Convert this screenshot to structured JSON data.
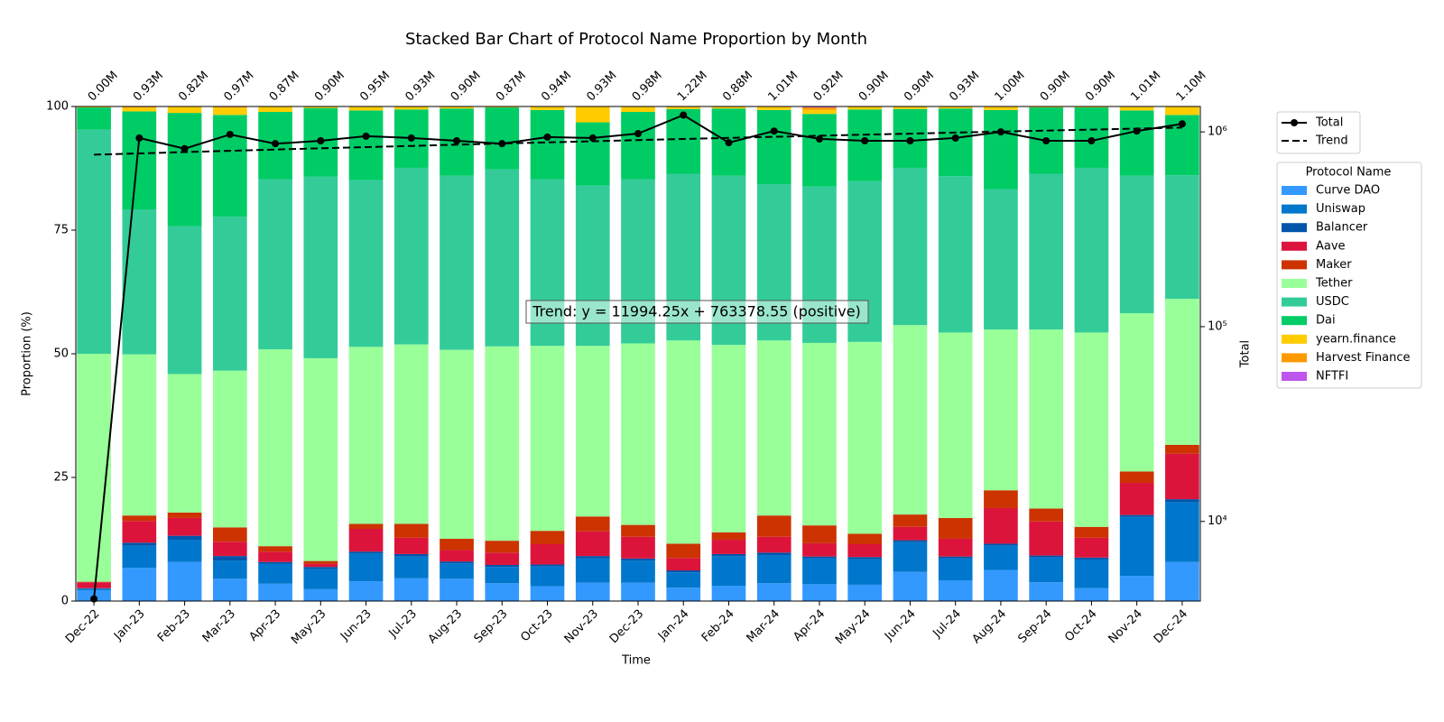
{
  "chart_data": {
    "type": "bar",
    "stacked": true,
    "title": "Stacked Bar Chart of Protocol Name Proportion by Month",
    "xlabel": "Time",
    "ylabel": "Proportion (%)",
    "y2label": "Total",
    "legend_title": "Protocol Name",
    "annotation": "Trend: y = 11994.25x + 763378.55 (positive)",
    "categories": [
      "Dec-22",
      "Jan-23",
      "Feb-23",
      "Mar-23",
      "Apr-23",
      "May-23",
      "Jun-23",
      "Jul-23",
      "Aug-23",
      "Sep-23",
      "Oct-23",
      "Nov-23",
      "Dec-23",
      "Jan-24",
      "Feb-24",
      "Mar-24",
      "Apr-24",
      "May-24",
      "Jun-24",
      "Jul-24",
      "Aug-24",
      "Sep-24",
      "Oct-24",
      "Nov-24",
      "Dec-24"
    ],
    "ylim": [
      0,
      100
    ],
    "yticks": [
      0,
      25,
      50,
      75,
      100
    ],
    "y2scale": "log",
    "y2lim": [
      3900,
      1350000
    ],
    "y2ticks": [
      {
        "value": 10000,
        "label": "10⁴"
      },
      {
        "value": 100000,
        "label": "10⁵"
      },
      {
        "value": 1000000,
        "label": "10⁶"
      }
    ],
    "series": [
      {
        "name": "Curve DAO",
        "color": "#3399ff",
        "values": [
          2.2,
          6.7,
          7.9,
          4.5,
          3.5,
          2.4,
          4.0,
          4.6,
          4.5,
          3.6,
          3.0,
          3.7,
          3.7,
          2.7,
          3.1,
          3.6,
          3.4,
          3.3,
          5.9,
          4.2,
          6.3,
          3.8,
          2.6,
          5.1,
          7.9
        ]
      },
      {
        "name": "Uniswap",
        "color": "#0077cc",
        "values": [
          0.3,
          4.5,
          4.5,
          3.7,
          4.0,
          4.1,
          5.6,
          4.4,
          3.1,
          3.3,
          4.0,
          4.9,
          4.5,
          3.1,
          6.0,
          5.7,
          5.2,
          5.2,
          6.0,
          4.4,
          4.9,
          5.0,
          5.8,
          11.9,
          12.1
        ]
      },
      {
        "name": "Balancer",
        "color": "#0055aa",
        "values": [
          0.1,
          0.6,
          0.8,
          0.9,
          0.4,
          0.4,
          0.4,
          0.5,
          0.4,
          0.4,
          0.4,
          0.5,
          0.4,
          0.4,
          0.4,
          0.5,
          0.4,
          0.4,
          0.4,
          0.4,
          0.4,
          0.4,
          0.4,
          0.4,
          0.6
        ]
      },
      {
        "name": "Aave",
        "color": "#dc143c",
        "values": [
          1.2,
          4.4,
          3.6,
          2.9,
          2.1,
          0.6,
          4.6,
          3.3,
          2.3,
          2.5,
          4.1,
          5.0,
          4.4,
          2.5,
          2.9,
          3.2,
          2.7,
          2.6,
          2.7,
          3.6,
          7.2,
          6.9,
          4.0,
          6.5,
          9.2
        ]
      },
      {
        "name": "Maker",
        "color": "#cc3300",
        "values": [
          0.1,
          1.1,
          1.1,
          2.9,
          1.1,
          0.6,
          1.0,
          2.8,
          2.3,
          2.4,
          2.7,
          3.0,
          2.4,
          2.9,
          1.5,
          4.3,
          3.6,
          2.1,
          2.5,
          4.2,
          3.6,
          2.6,
          2.2,
          2.3,
          1.8
        ]
      },
      {
        "name": "Tether",
        "color": "#99ff99",
        "values": [
          46.1,
          32.6,
          28.0,
          31.7,
          39.8,
          41.0,
          35.8,
          36.3,
          38.2,
          39.3,
          37.4,
          34.5,
          36.7,
          41.1,
          37.9,
          35.4,
          36.9,
          38.8,
          38.3,
          37.5,
          32.5,
          36.2,
          39.3,
          32.0,
          29.5
        ]
      },
      {
        "name": "USDC",
        "color": "#33cc99",
        "values": [
          45.3,
          29.3,
          29.9,
          31.1,
          34.4,
          36.7,
          33.7,
          35.7,
          35.2,
          35.8,
          33.7,
          32.4,
          33.2,
          33.7,
          34.2,
          31.6,
          31.6,
          32.5,
          31.8,
          31.6,
          28.4,
          31.5,
          33.3,
          27.8,
          25.0
        ]
      },
      {
        "name": "Dai",
        "color": "#00cc66",
        "values": [
          4.5,
          19.8,
          22.9,
          20.6,
          13.6,
          13.9,
          14.1,
          11.8,
          13.6,
          12.5,
          14.0,
          12.8,
          13.6,
          13.1,
          13.6,
          15.0,
          14.7,
          14.5,
          11.9,
          13.7,
          16.0,
          13.4,
          12.2,
          13.2,
          12.2
        ]
      },
      {
        "name": "yearn.finance",
        "color": "#ffcc00",
        "values": [
          0.2,
          0.8,
          1.2,
          1.5,
          1.0,
          0.2,
          0.7,
          0.5,
          0.3,
          0.1,
          0.6,
          3.1,
          1.0,
          0.4,
          0.3,
          0.6,
          0.8,
          0.5,
          0.4,
          0.3,
          0.6,
          0.1,
          0.1,
          0.7,
          1.6
        ]
      },
      {
        "name": "Harvest Finance",
        "color": "#ff9900",
        "values": [
          0,
          0.1,
          0.1,
          0.1,
          0.1,
          0.1,
          0.1,
          0.1,
          0.1,
          0.1,
          0.1,
          0.1,
          0.1,
          0.1,
          0.1,
          0.1,
          0.5,
          0.1,
          0.1,
          0.1,
          0.1,
          0.1,
          0.1,
          0.1,
          0.1
        ]
      },
      {
        "name": "NFTFI",
        "color": "#bf55ec",
        "values": [
          0,
          0.1,
          0,
          0.1,
          0,
          0,
          0,
          0,
          0,
          0,
          0,
          0,
          0,
          0,
          0,
          0,
          0.2,
          0,
          0,
          0,
          0,
          0,
          0,
          0,
          0
        ]
      },
      {
        "name": "Total",
        "type": "line",
        "axis": "y2",
        "color": "#000000",
        "marker": "o",
        "values": [
          4000,
          930000,
          820000,
          970000,
          870000,
          900000,
          950000,
          930000,
          900000,
          870000,
          940000,
          930000,
          980000,
          1220000,
          880000,
          1010000,
          920000,
          900000,
          900000,
          930000,
          1000000,
          900000,
          900000,
          1010000,
          1100000
        ],
        "value_labels": [
          "0.00M",
          "0.93M",
          "0.82M",
          "0.97M",
          "0.87M",
          "0.90M",
          "0.95M",
          "0.93M",
          "0.90M",
          "0.87M",
          "0.94M",
          "0.93M",
          "0.98M",
          "1.22M",
          "0.88M",
          "1.01M",
          "0.92M",
          "0.90M",
          "0.90M",
          "0.93M",
          "1.00M",
          "0.90M",
          "0.90M",
          "1.01M",
          "1.10M"
        ]
      },
      {
        "name": "Trend",
        "type": "line",
        "axis": "y2",
        "color": "#000000",
        "linestyle": "dashed",
        "values": [
          763379,
          775373,
          787367,
          799361,
          811356,
          823350,
          835344,
          847338,
          859333,
          871327,
          883321,
          895315,
          907310,
          919304,
          931298,
          943292,
          955287,
          967281,
          979275,
          991269,
          1003264,
          1015258,
          1027252,
          1039246,
          1051241
        ]
      }
    ]
  }
}
